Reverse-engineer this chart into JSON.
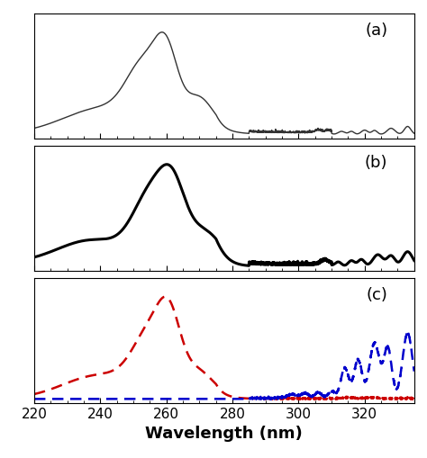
{
  "xlim": [
    220,
    335
  ],
  "xlabel": "Wavelength (nm)",
  "panel_labels": [
    "(a)",
    "(b)",
    "(c)"
  ],
  "panel_label_fontsize": 13,
  "xlabel_fontsize": 13,
  "tick_label_fontsize": 11,
  "line_color_a": "#333333",
  "line_color_b": "#000000",
  "line_color_c_red": "#cc0000",
  "line_color_c_blue": "#0000cc",
  "line_lw_a": 1.0,
  "line_lw_b": 2.2,
  "line_lw_c": 1.8,
  "xticks": [
    220,
    240,
    260,
    280,
    300,
    320
  ]
}
